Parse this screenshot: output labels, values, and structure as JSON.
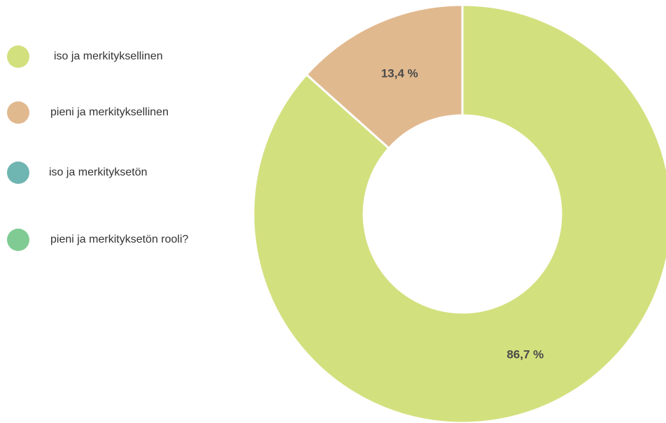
{
  "chart_data": {
    "type": "pie",
    "variant": "donut",
    "categories": [
      "iso ja merkityksellinen",
      "pieni ja merkityksellinen",
      "iso ja merkityksetön",
      "pieni ja merkityksetön rooli?"
    ],
    "values": [
      86.7,
      13.4,
      0,
      0
    ],
    "data_labels": [
      "86,7 %",
      "13,4 %",
      "",
      ""
    ],
    "colors": [
      "#d3e07e",
      "#e1b98f",
      "#6fb5b2",
      "#7fcb93"
    ],
    "legend_position": "left"
  }
}
